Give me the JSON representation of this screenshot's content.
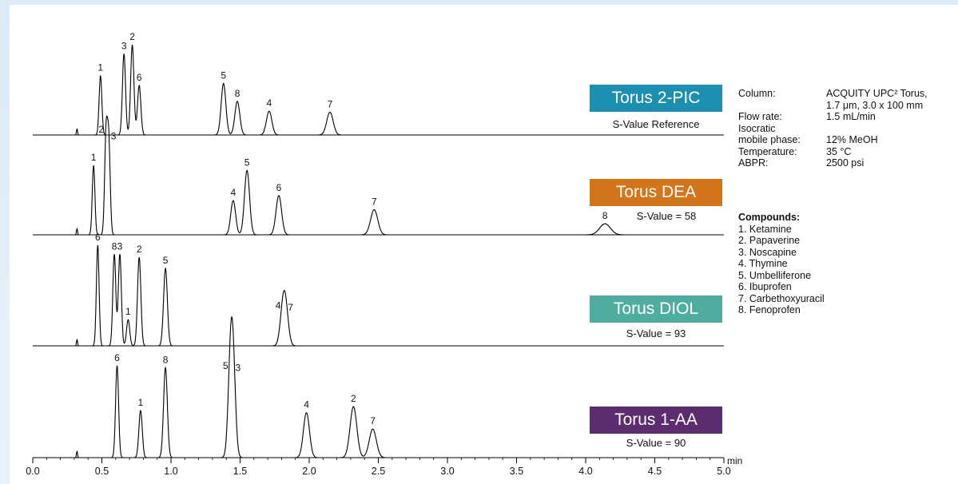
{
  "chart_data": {
    "type": "line",
    "xlabel": "min",
    "xlim": [
      0.0,
      5.0
    ],
    "xticks": [
      "0.0",
      "0.5",
      "1.0",
      "1.5",
      "2.0",
      "2.5",
      "3.0",
      "3.5",
      "4.0",
      "4.5",
      "5.0"
    ],
    "panels": [
      {
        "name": "Torus 2-PIC",
        "subtitle": "S-Value Reference",
        "color": "#1d8fb0",
        "peaks": [
          {
            "label": "1",
            "x": 0.49,
            "height": 0.6
          },
          {
            "label": "3",
            "x": 0.66,
            "height": 0.82
          },
          {
            "label": "2",
            "x": 0.72,
            "height": 0.91
          },
          {
            "label": "6",
            "x": 0.77,
            "height": 0.5
          },
          {
            "label": "5",
            "x": 1.38,
            "height": 0.52
          },
          {
            "label": "8",
            "x": 1.48,
            "height": 0.34
          },
          {
            "label": "4",
            "x": 1.71,
            "height": 0.24
          },
          {
            "label": "7",
            "x": 2.15,
            "height": 0.23
          }
        ]
      },
      {
        "name": "Torus DEA",
        "subtitle": "S-Value = 58",
        "color": "#d4751c",
        "peaks": [
          {
            "label": "1",
            "x": 0.44,
            "height": 0.69
          },
          {
            "label": "2",
            "x": 0.53,
            "height": 0.97
          },
          {
            "label": "3",
            "x": 0.55,
            "height": 0.9
          },
          {
            "label": "4",
            "x": 1.45,
            "height": 0.34
          },
          {
            "label": "5",
            "x": 1.55,
            "height": 0.64
          },
          {
            "label": "6",
            "x": 1.78,
            "height": 0.39
          },
          {
            "label": "7",
            "x": 2.47,
            "height": 0.25
          },
          {
            "label": "8",
            "x": 4.14,
            "height": 0.11
          }
        ]
      },
      {
        "name": "Torus DIOL",
        "subtitle": "S-Value = 93",
        "color": "#4fada0",
        "peaks": [
          {
            "label": "6",
            "x": 0.47,
            "height": 1.0
          },
          {
            "label": "8",
            "x": 0.59,
            "height": 0.91
          },
          {
            "label": "3",
            "x": 0.63,
            "height": 0.91
          },
          {
            "label": "1",
            "x": 0.69,
            "height": 0.26
          },
          {
            "label": "2",
            "x": 0.77,
            "height": 0.88
          },
          {
            "label": "5",
            "x": 0.96,
            "height": 0.77
          },
          {
            "label": "4",
            "x": 1.81,
            "height": 0.32
          },
          {
            "label": "7",
            "x": 1.83,
            "height": 0.3
          }
        ]
      },
      {
        "name": "Torus 1-AA",
        "subtitle": "S-Value = 90",
        "color": "#5b2d6e",
        "peaks": [
          {
            "label": "6",
            "x": 0.61,
            "height": 0.9
          },
          {
            "label": "1",
            "x": 0.78,
            "height": 0.46
          },
          {
            "label": "8",
            "x": 0.96,
            "height": 0.88
          },
          {
            "label": "5",
            "x": 1.43,
            "height": 0.82
          },
          {
            "label": "3",
            "x": 1.45,
            "height": 0.8
          },
          {
            "label": "4",
            "x": 1.98,
            "height": 0.44
          },
          {
            "label": "2",
            "x": 2.32,
            "height": 0.5
          },
          {
            "label": "7",
            "x": 2.46,
            "height": 0.28
          }
        ]
      }
    ]
  },
  "conditions": {
    "column_label": "Column:",
    "column_value_1": "ACQUITY UPC² Torus,",
    "column_value_2": "1.7 μm, 3.0 x 100 mm",
    "flow_label": "Flow rate:",
    "flow_value": "1.5 mL/min",
    "isocratic_label": "Isocratic",
    "mobile_label": "mobile phase:",
    "mobile_value": "12% MeOH",
    "temp_label": "Temperature:",
    "temp_value": "35 °C",
    "abpr_label": "ABPR:",
    "abpr_value": "2500 psi"
  },
  "compounds": {
    "title": "Compounds:",
    "items": [
      "1. Ketamine",
      "2. Papaverine",
      "3. Noscapine",
      "4. Thymine",
      "5. Umbelliferone",
      "6. Ibuprofen",
      "7. Carbethoxyuracil",
      "8. Fenoprofen"
    ]
  }
}
